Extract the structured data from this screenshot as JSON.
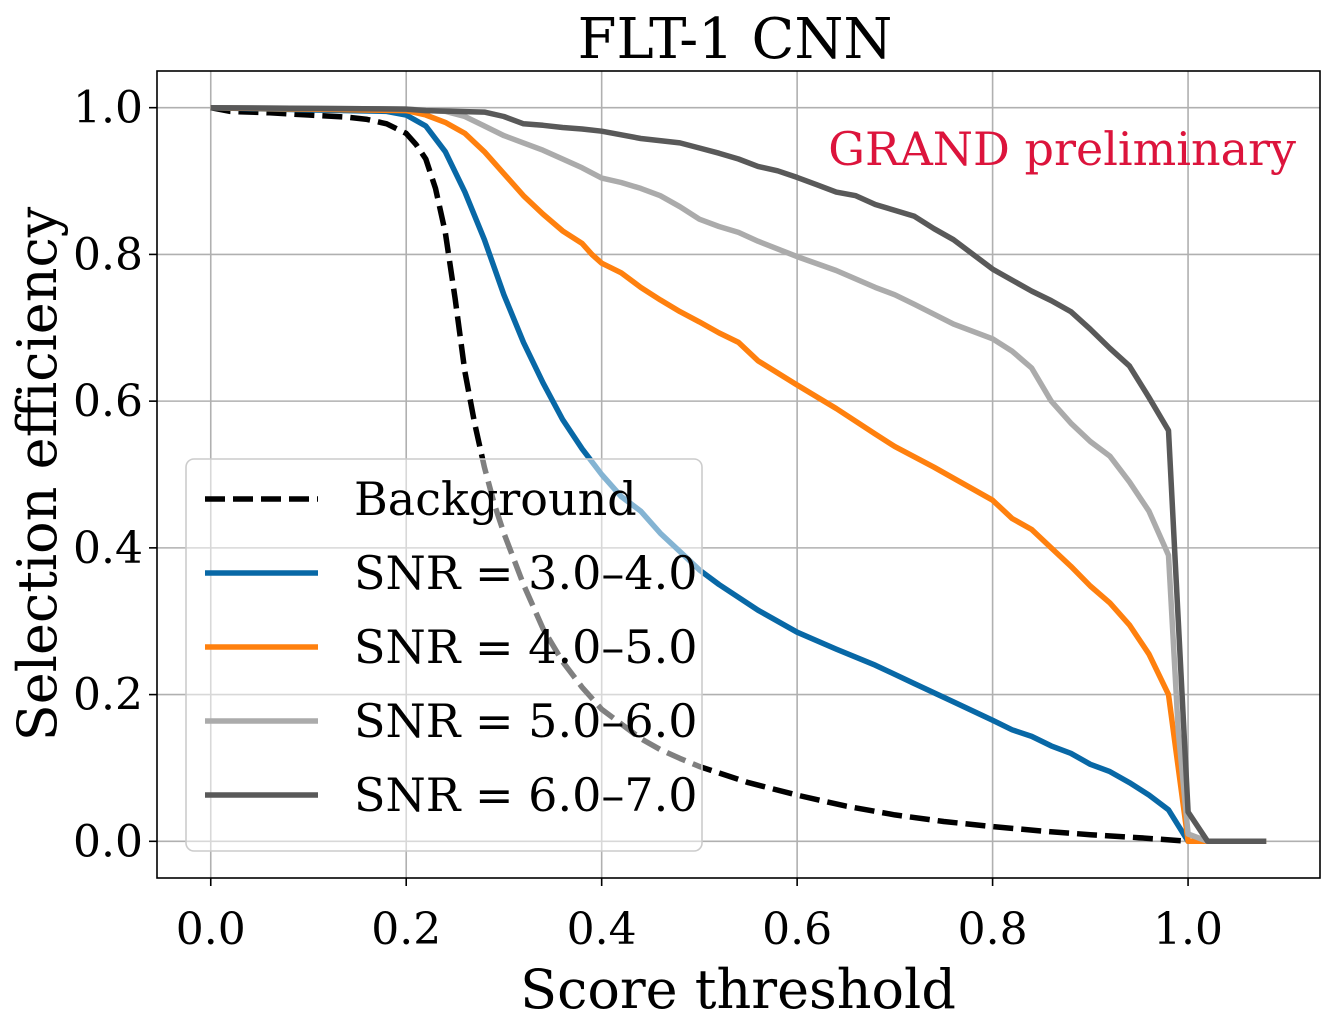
{
  "chart_data": {
    "type": "line",
    "title": "FLT-1 CNN",
    "xlabel": "Score threshold",
    "ylabel": "Selection efficiency",
    "xlim": [
      -0.055,
      1.135
    ],
    "ylim": [
      -0.05,
      1.05
    ],
    "xticks": [
      0.0,
      0.2,
      0.4,
      0.6,
      0.8,
      1.0
    ],
    "yticks": [
      0.0,
      0.2,
      0.4,
      0.6,
      0.8,
      1.0
    ],
    "xtick_labels": [
      "0.0",
      "0.2",
      "0.4",
      "0.6",
      "0.8",
      "1.0"
    ],
    "ytick_labels": [
      "0.0",
      "0.2",
      "0.4",
      "0.6",
      "0.8",
      "1.0"
    ],
    "grid": true,
    "legend_position": "lower-left",
    "annotation": {
      "text": "GRAND preliminary",
      "color": "#dc143c",
      "position": "top-right"
    },
    "series": [
      {
        "name": "Background",
        "color": "#000000",
        "dash": "dashed",
        "x": [
          0.0,
          0.02,
          0.06,
          0.1,
          0.14,
          0.16,
          0.18,
          0.2,
          0.21,
          0.22,
          0.23,
          0.24,
          0.25,
          0.26,
          0.27,
          0.28,
          0.29,
          0.3,
          0.32,
          0.34,
          0.36,
          0.38,
          0.4,
          0.42,
          0.44,
          0.46,
          0.48,
          0.5,
          0.55,
          0.6,
          0.65,
          0.7,
          0.75,
          0.8,
          0.85,
          0.9,
          0.95,
          1.0
        ],
        "y": [
          1.0,
          0.995,
          0.993,
          0.99,
          0.987,
          0.984,
          0.978,
          0.965,
          0.95,
          0.93,
          0.89,
          0.83,
          0.74,
          0.64,
          0.57,
          0.51,
          0.46,
          0.42,
          0.35,
          0.29,
          0.245,
          0.21,
          0.18,
          0.16,
          0.14,
          0.125,
          0.113,
          0.102,
          0.08,
          0.063,
          0.048,
          0.036,
          0.027,
          0.02,
          0.014,
          0.009,
          0.005,
          0.0
        ]
      },
      {
        "name": "SNR = 3.0–4.0",
        "color": "#0868a6",
        "dash": "solid",
        "x": [
          0.0,
          0.1,
          0.18,
          0.2,
          0.22,
          0.24,
          0.26,
          0.28,
          0.3,
          0.32,
          0.34,
          0.36,
          0.38,
          0.4,
          0.42,
          0.44,
          0.46,
          0.48,
          0.5,
          0.52,
          0.56,
          0.6,
          0.64,
          0.68,
          0.72,
          0.76,
          0.8,
          0.82,
          0.84,
          0.86,
          0.88,
          0.9,
          0.92,
          0.94,
          0.96,
          0.98,
          1.0,
          1.02,
          1.08
        ],
        "y": [
          1.0,
          0.997,
          0.995,
          0.99,
          0.975,
          0.94,
          0.885,
          0.82,
          0.745,
          0.68,
          0.625,
          0.575,
          0.535,
          0.5,
          0.47,
          0.45,
          0.42,
          0.395,
          0.37,
          0.35,
          0.315,
          0.285,
          0.262,
          0.24,
          0.215,
          0.19,
          0.165,
          0.152,
          0.143,
          0.13,
          0.12,
          0.105,
          0.095,
          0.08,
          0.063,
          0.043,
          0.0,
          0.0,
          0.0
        ]
      },
      {
        "name": "SNR = 4.0–5.0",
        "color": "#ff800e",
        "dash": "solid",
        "x": [
          0.0,
          0.1,
          0.2,
          0.22,
          0.24,
          0.26,
          0.28,
          0.3,
          0.32,
          0.34,
          0.36,
          0.38,
          0.39,
          0.4,
          0.42,
          0.44,
          0.46,
          0.48,
          0.5,
          0.52,
          0.54,
          0.56,
          0.6,
          0.64,
          0.68,
          0.7,
          0.74,
          0.76,
          0.8,
          0.82,
          0.84,
          0.86,
          0.88,
          0.9,
          0.92,
          0.94,
          0.96,
          0.98,
          0.99,
          1.0,
          1.02,
          1.08
        ],
        "y": [
          1.0,
          0.998,
          0.996,
          0.99,
          0.98,
          0.965,
          0.94,
          0.91,
          0.88,
          0.855,
          0.832,
          0.815,
          0.8,
          0.788,
          0.775,
          0.755,
          0.738,
          0.722,
          0.708,
          0.693,
          0.68,
          0.655,
          0.622,
          0.59,
          0.555,
          0.538,
          0.51,
          0.495,
          0.465,
          0.44,
          0.425,
          0.4,
          0.375,
          0.348,
          0.325,
          0.295,
          0.255,
          0.2,
          0.1,
          0.0,
          0.0,
          0.0
        ]
      },
      {
        "name": "SNR = 5.0–6.0",
        "color": "#ababab",
        "dash": "solid",
        "x": [
          0.0,
          0.1,
          0.2,
          0.24,
          0.26,
          0.28,
          0.3,
          0.32,
          0.34,
          0.36,
          0.38,
          0.4,
          0.42,
          0.44,
          0.46,
          0.48,
          0.5,
          0.52,
          0.54,
          0.56,
          0.6,
          0.64,
          0.68,
          0.7,
          0.72,
          0.76,
          0.8,
          0.82,
          0.84,
          0.86,
          0.88,
          0.9,
          0.92,
          0.94,
          0.96,
          0.98,
          0.99,
          1.0,
          1.02,
          1.08
        ],
        "y": [
          1.0,
          0.999,
          0.998,
          0.995,
          0.988,
          0.975,
          0.962,
          0.952,
          0.942,
          0.93,
          0.918,
          0.904,
          0.898,
          0.89,
          0.88,
          0.865,
          0.848,
          0.838,
          0.83,
          0.818,
          0.797,
          0.778,
          0.755,
          0.745,
          0.732,
          0.705,
          0.685,
          0.668,
          0.645,
          0.6,
          0.57,
          0.545,
          0.525,
          0.49,
          0.45,
          0.39,
          0.15,
          0.01,
          0.0,
          0.0
        ]
      },
      {
        "name": "SNR = 6.0–7.0",
        "color": "#595959",
        "dash": "solid",
        "x": [
          0.0,
          0.1,
          0.2,
          0.22,
          0.28,
          0.3,
          0.32,
          0.34,
          0.36,
          0.38,
          0.4,
          0.42,
          0.44,
          0.48,
          0.5,
          0.52,
          0.54,
          0.56,
          0.58,
          0.6,
          0.62,
          0.64,
          0.66,
          0.68,
          0.7,
          0.72,
          0.74,
          0.76,
          0.78,
          0.8,
          0.82,
          0.84,
          0.86,
          0.88,
          0.9,
          0.92,
          0.94,
          0.96,
          0.98,
          0.99,
          1.0,
          1.02,
          1.08
        ],
        "y": [
          1.0,
          0.999,
          0.998,
          0.996,
          0.994,
          0.988,
          0.978,
          0.976,
          0.973,
          0.971,
          0.968,
          0.963,
          0.958,
          0.952,
          0.945,
          0.938,
          0.93,
          0.92,
          0.914,
          0.905,
          0.895,
          0.885,
          0.88,
          0.868,
          0.86,
          0.852,
          0.835,
          0.82,
          0.8,
          0.78,
          0.765,
          0.75,
          0.737,
          0.722,
          0.698,
          0.672,
          0.648,
          0.605,
          0.56,
          0.3,
          0.04,
          0.0,
          0.0
        ]
      }
    ]
  }
}
